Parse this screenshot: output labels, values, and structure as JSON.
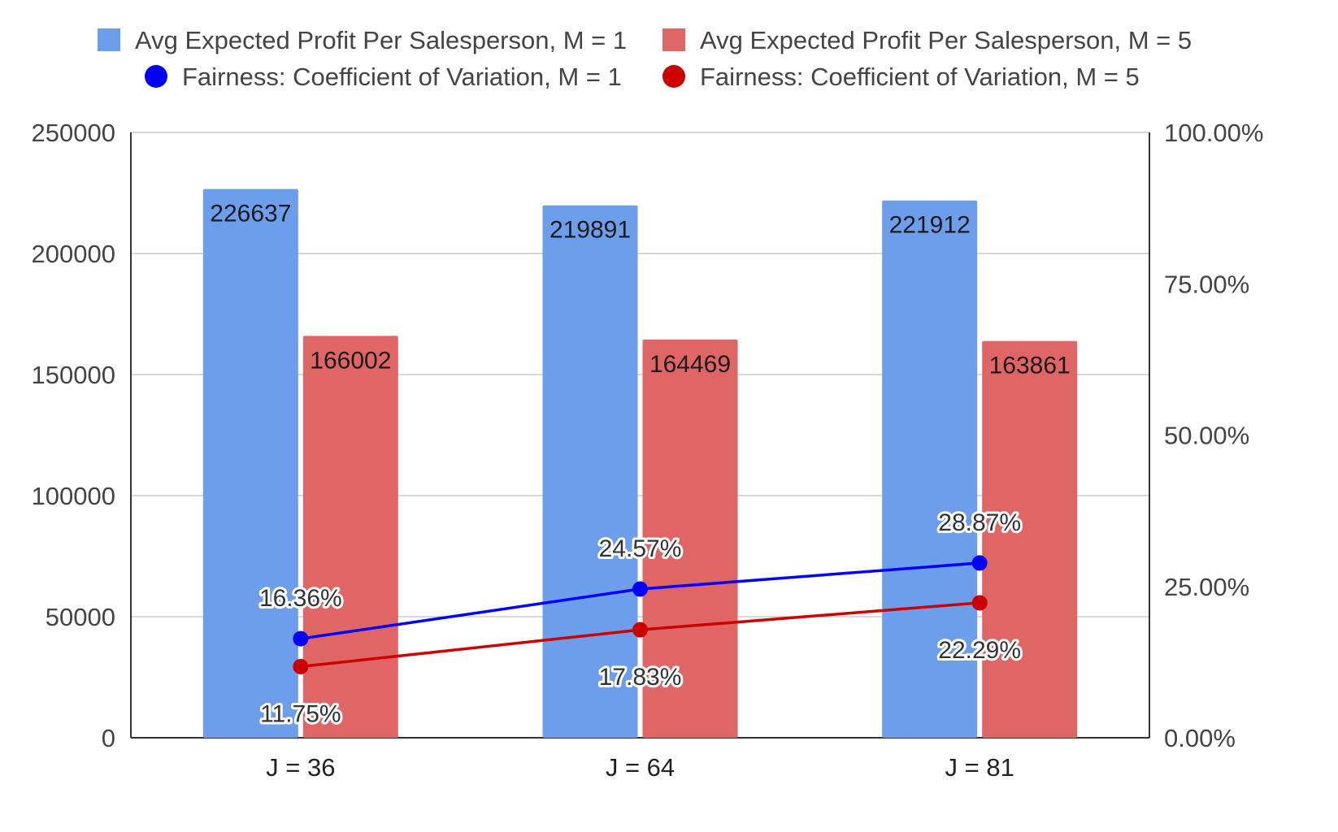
{
  "chart_data": {
    "type": "bar",
    "categories": [
      "J = 36",
      "J = 64",
      "J = 81"
    ],
    "series": [
      {
        "name": "Avg Expected Profit Per Salesperson, M = 1",
        "type": "bar",
        "axis": "left",
        "color": "#6d9eeb",
        "values": [
          226637,
          219891,
          221912
        ],
        "labels": [
          "226637",
          "219891",
          "221912"
        ]
      },
      {
        "name": "Avg Expected Profit Per Salesperson, M = 5",
        "type": "bar",
        "axis": "left",
        "color": "#e06666",
        "values": [
          166002,
          164469,
          163861
        ],
        "labels": [
          "166002",
          "164469",
          "163861"
        ]
      },
      {
        "name": "Fairness: Coefficient of Variation, M = 1",
        "type": "line",
        "axis": "right",
        "color": "#0000ff",
        "values": [
          16.36,
          24.57,
          28.87
        ],
        "labels": [
          "16.36%",
          "24.57%",
          "28.87%"
        ]
      },
      {
        "name": "Fairness: Coefficient of Variation, M = 5",
        "type": "line",
        "axis": "right",
        "color": "#cc0000",
        "values": [
          11.75,
          17.83,
          22.29
        ],
        "labels": [
          "11.75%",
          "17.83%",
          "22.29%"
        ]
      }
    ],
    "y_left": {
      "range": [
        0,
        250000
      ],
      "ticks": [
        "0",
        "50000",
        "100000",
        "150000",
        "200000",
        "250000"
      ]
    },
    "y_right": {
      "range": [
        0,
        100
      ],
      "ticks": [
        "0.00%",
        "25.00%",
        "50.00%",
        "75.00%",
        "100.00%"
      ]
    },
    "grid": true,
    "legend_position": "top"
  }
}
